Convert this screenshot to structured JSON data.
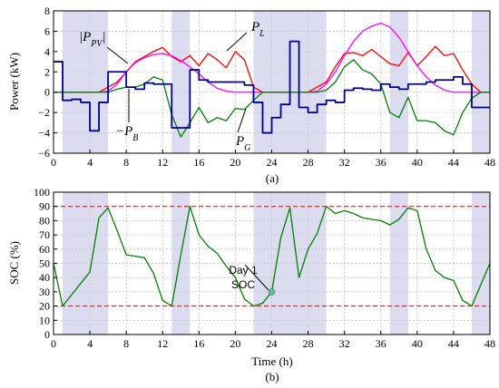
{
  "chart_data": [
    {
      "type": "line",
      "ylabel": "Power (kW)",
      "caption": "(a)",
      "xlim": [
        0,
        48
      ],
      "ylim": [
        -6,
        8
      ],
      "xticks": [
        0,
        4,
        8,
        12,
        16,
        20,
        24,
        28,
        32,
        36,
        40,
        44,
        48
      ],
      "yticks": [
        -6,
        -4,
        -2,
        0,
        2,
        4,
        6,
        8
      ],
      "shaded_intervals": [
        [
          1,
          6
        ],
        [
          13,
          15
        ],
        [
          22,
          30
        ],
        [
          37,
          39
        ],
        [
          46,
          48
        ]
      ],
      "series": [
        {
          "name": "P_L",
          "label": "P_L",
          "color": "#ff0000",
          "x": [
            0,
            1,
            2,
            3,
            4,
            5,
            6,
            7,
            8,
            9,
            10,
            11,
            12,
            13,
            14,
            15,
            16,
            17,
            18,
            19,
            20,
            21,
            22,
            23,
            24,
            25,
            26,
            27,
            28,
            29,
            30,
            31,
            32,
            33,
            34,
            35,
            36,
            37,
            38,
            39,
            40,
            41,
            42,
            43,
            44,
            45,
            46,
            47,
            48
          ],
          "y": [
            0,
            0,
            0,
            0,
            0,
            0,
            0.5,
            1.0,
            2.0,
            3.0,
            3.5,
            4.0,
            4.4,
            3.5,
            3.0,
            3.6,
            2.6,
            3.8,
            3.2,
            2.4,
            4.0,
            3.2,
            0.5,
            0,
            0,
            0,
            0,
            0,
            0,
            0.5,
            1.0,
            2.5,
            3.8,
            3.9,
            3.6,
            4.2,
            3.5,
            2.8,
            2.6,
            3.9,
            2.6,
            3.5,
            4.5,
            3.6,
            3.8,
            2.2,
            0.8,
            0,
            0
          ]
        },
        {
          "name": "|P_PV|",
          "label": "|P_PV|",
          "color": "#ff00ff",
          "x": [
            0,
            1,
            2,
            3,
            4,
            5,
            6,
            7,
            8,
            9,
            10,
            11,
            12,
            13,
            14,
            15,
            16,
            17,
            18,
            19,
            20,
            21,
            22,
            23,
            24,
            25,
            26,
            27,
            28,
            29,
            30,
            31,
            32,
            33,
            34,
            35,
            36,
            37,
            38,
            39,
            40,
            41,
            42,
            43,
            44,
            45,
            46,
            47,
            48
          ],
          "y": [
            0,
            0,
            0,
            0,
            0,
            0,
            0.1,
            0.8,
            2.0,
            2.9,
            3.4,
            3.7,
            3.8,
            3.6,
            3.1,
            2.5,
            1.8,
            1.0,
            0.4,
            0.1,
            0,
            0,
            0,
            0,
            0,
            0,
            0,
            0,
            0,
            0.1,
            0.8,
            2.0,
            3.6,
            5.0,
            6.0,
            6.5,
            6.8,
            6.4,
            5.4,
            4.0,
            2.6,
            1.5,
            0.7,
            0.2,
            0,
            0,
            0,
            0,
            0
          ]
        },
        {
          "name": "P_G",
          "label": "P_G",
          "color": "#008000",
          "x": [
            0,
            1,
            2,
            3,
            4,
            5,
            6,
            7,
            8,
            9,
            10,
            11,
            12,
            13,
            14,
            15,
            16,
            17,
            18,
            19,
            20,
            21,
            22,
            23,
            24,
            25,
            26,
            27,
            28,
            29,
            30,
            31,
            32,
            33,
            34,
            35,
            36,
            37,
            38,
            39,
            40,
            41,
            42,
            43,
            44,
            45,
            46,
            47,
            48
          ],
          "y": [
            0,
            0,
            0,
            0,
            0,
            0,
            0,
            0.3,
            0.5,
            0.5,
            0.8,
            1.5,
            1.2,
            -2.2,
            -4.4,
            -3.0,
            -1.5,
            -3.0,
            -2.5,
            -2.8,
            -1.6,
            -1.7,
            -0.8,
            0,
            0,
            0,
            0,
            0,
            0,
            0,
            0.2,
            1.0,
            2.5,
            3.2,
            2.2,
            1.8,
            0.8,
            -2.0,
            -2.5,
            -0.5,
            -2.8,
            -2.8,
            -3.0,
            -3.8,
            -4.2,
            -2.0,
            -0.6,
            0,
            0
          ]
        },
        {
          "name": "-P_B",
          "label": "-P_B",
          "color": "#00008b",
          "x": [
            0,
            1,
            2,
            3,
            4,
            5,
            6,
            7,
            8,
            9,
            10,
            11,
            12,
            13,
            14,
            15,
            16,
            17,
            18,
            19,
            20,
            21,
            22,
            23,
            24,
            25,
            26,
            27,
            28,
            29,
            30,
            31,
            32,
            33,
            34,
            35,
            36,
            37,
            38,
            39,
            40,
            41,
            42,
            43,
            44,
            45,
            46,
            47,
            48
          ],
          "y": [
            3.0,
            -0.8,
            -0.7,
            -1.0,
            -3.8,
            -1.0,
            2.0,
            2.0,
            0.5,
            0.3,
            0.9,
            0.8,
            0.8,
            -3.5,
            -3.5,
            2.2,
            1.2,
            1.0,
            1.0,
            1.0,
            1.0,
            0.7,
            -1.0,
            -4.0,
            -2.5,
            -1.2,
            5.0,
            -1.5,
            -2.0,
            -1.2,
            -0.8,
            -1.0,
            0.2,
            0.4,
            0.3,
            0.2,
            0.8,
            0.5,
            0.3,
            0.8,
            0.8,
            1.0,
            1.2,
            1.2,
            1.5,
            0.8,
            -1.5,
            -1.5,
            -1.5
          ]
        }
      ],
      "annotations": [
        "|P_PV|",
        "P_L",
        "-P_B",
        "P_G"
      ]
    },
    {
      "type": "line",
      "xlabel": "Time (h)",
      "ylabel": "SOC (%)",
      "caption": "(b)",
      "xlim": [
        0,
        48
      ],
      "ylim": [
        0,
        100
      ],
      "xticks": [
        0,
        4,
        8,
        12,
        16,
        20,
        24,
        28,
        32,
        36,
        40,
        44,
        48
      ],
      "yticks": [
        0,
        10,
        20,
        30,
        40,
        50,
        60,
        70,
        80,
        90,
        100
      ],
      "shaded_intervals": [
        [
          1,
          6
        ],
        [
          13,
          15
        ],
        [
          22,
          30
        ],
        [
          37,
          39
        ],
        [
          46,
          48
        ]
      ],
      "reference_lines": [
        {
          "y": 90,
          "color": "#ff0000",
          "style": "dashed"
        },
        {
          "y": 20,
          "color": "#ff0000",
          "style": "dashed"
        }
      ],
      "series": [
        {
          "name": "SOC",
          "color": "#008000",
          "x": [
            0,
            1,
            4,
            5,
            6,
            7,
            8,
            9,
            10,
            11,
            12,
            13,
            14,
            15,
            16,
            17,
            18,
            19,
            20,
            21,
            22,
            23,
            24,
            25,
            26,
            27,
            28,
            29,
            30,
            31,
            32,
            33,
            34,
            35,
            36,
            37,
            38,
            39,
            40,
            41,
            42,
            43,
            44,
            45,
            46,
            48
          ],
          "y": [
            50,
            20,
            44,
            82,
            89,
            73,
            56,
            55,
            54,
            43,
            24,
            20,
            56,
            90,
            70,
            62,
            57,
            48,
            40,
            25,
            20,
            22,
            30,
            68,
            89,
            40,
            60,
            71,
            90,
            85,
            87,
            85,
            82,
            81,
            80,
            77,
            81,
            89,
            87,
            60,
            45,
            40,
            38,
            24,
            20,
            50
          ]
        }
      ],
      "marker": {
        "x": 24,
        "y": 30,
        "color": "#66bb99"
      },
      "annotation": {
        "line1": "Day 1",
        "line2": "SOC"
      }
    }
  ]
}
